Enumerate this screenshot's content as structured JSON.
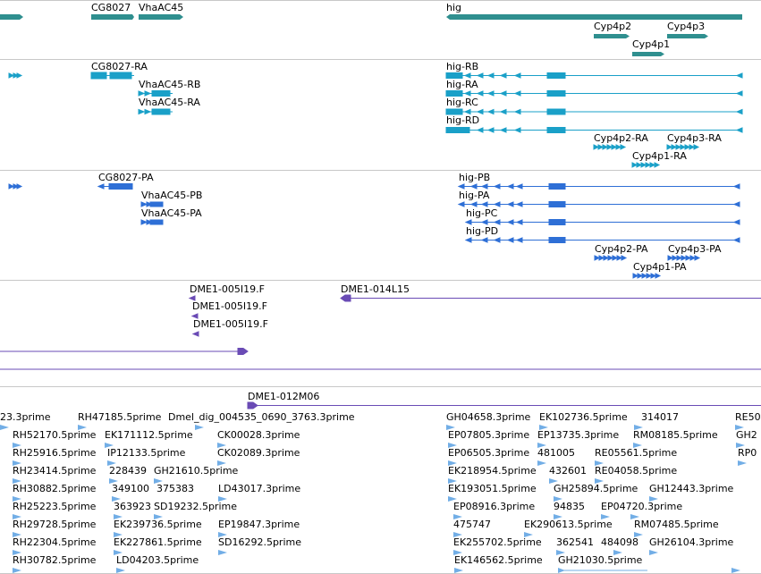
{
  "colors": {
    "gene": "#2f8f8f",
    "transcript": "#1aa0c8",
    "protein": "#2e6fd6",
    "clone": "#6a4bb5",
    "est": "#72aee6"
  },
  "genes": {
    "cg8027": "CG8027",
    "vhaac45": "VhaAC45",
    "hig": "hig",
    "cyp4p2": "Cyp4p2",
    "cyp4p3": "Cyp4p3",
    "cyp4p1": "Cyp4p1"
  },
  "transcripts": {
    "cg8027_ra": "CG8027-RA",
    "vhaac45_rb": "VhaAC45-RB",
    "vhaac45_ra": "VhaAC45-RA",
    "hig_rb": "hig-RB",
    "hig_ra": "hig-RA",
    "hig_rc": "hig-RC",
    "hig_rd": "hig-RD",
    "cyp4p2_ra": "Cyp4p2-RA",
    "cyp4p3_ra": "Cyp4p3-RA",
    "cyp4p1_ra": "Cyp4p1-RA"
  },
  "proteins": {
    "cg8027_pa": "CG8027-PA",
    "vhaac45_pb": "VhaAC45-PB",
    "vhaac45_pa": "VhaAC45-PA",
    "hig_pb": "hig-PB",
    "hig_pa": "hig-PA",
    "hig_pc": "hig-PC",
    "hig_pd": "hig-PD",
    "cyp4p2_pa": "Cyp4p2-PA",
    "cyp4p3_pa": "Cyp4p3-PA",
    "cyp4p1_pa": "Cyp4p1-PA"
  },
  "clones": {
    "c1": "DME1-005I19.F",
    "c2": "DME1-005I19.F",
    "c3": "DME1-005I19.F",
    "c4": "DME1-014L15",
    "c5": "DME1-012M06"
  },
  "ests": {
    "e01": "23.3prime",
    "e02": "RH47185.5prime",
    "e03": "Dmel_dig_004535_0690_3763.3prime",
    "e04": "GH04658.3prime",
    "e05": "EK102736.5prime",
    "e06": "314017",
    "e07": "RE50",
    "e08": "RH52170.5prime",
    "e09": "EK171112.5prime",
    "e10": "CK00028.3prime",
    "e11": "EP07805.3prime",
    "e12": "EP13735.3prime",
    "e13": "RM08185.5prime",
    "e14": "GH2",
    "e15": "RH25916.5prime",
    "e16": "IP12133.5prime",
    "e17": "CK02089.3prime",
    "e18": "EP06505.3prime",
    "e19": "481005",
    "e20": "RE05561.5prime",
    "e21": "RP0",
    "e22": "RH23414.5prime",
    "e23": "228439",
    "e24": "GH21610.5prime",
    "e25": "EK218954.5prime",
    "e26": "432601",
    "e27": "RE04058.5prime",
    "e28": "RH30882.5prime",
    "e29": "349100",
    "e30": "375383",
    "e31": "LD43017.3prime",
    "e32": "EK193051.5prime",
    "e33": "GH25894.5prime",
    "e34": "GH12443.3prime",
    "e35": "RH25223.5prime",
    "e36": "363923",
    "e37": "SD19232.5prime",
    "e38": "EP08916.3prime",
    "e39": "94835",
    "e40": "EP04720.3prime",
    "e41": "RH29728.5prime",
    "e42": "EK239736.5prime",
    "e43": "EP19847.3prime",
    "e44": "475747",
    "e45": "EK290613.5prime",
    "e46": "RM07485.5prime",
    "e47": "RH22304.5prime",
    "e48": "EK227861.5prime",
    "e49": "SD16292.5prime",
    "e50": "EK255702.5prime",
    "e51": "362541",
    "e52": "484098",
    "e53": "GH26104.3prime",
    "e54": "RH30782.5prime",
    "e55": "LD04203.5prime",
    "e56": "EK146562.5prime",
    "e57": "GH21030.5prime"
  }
}
